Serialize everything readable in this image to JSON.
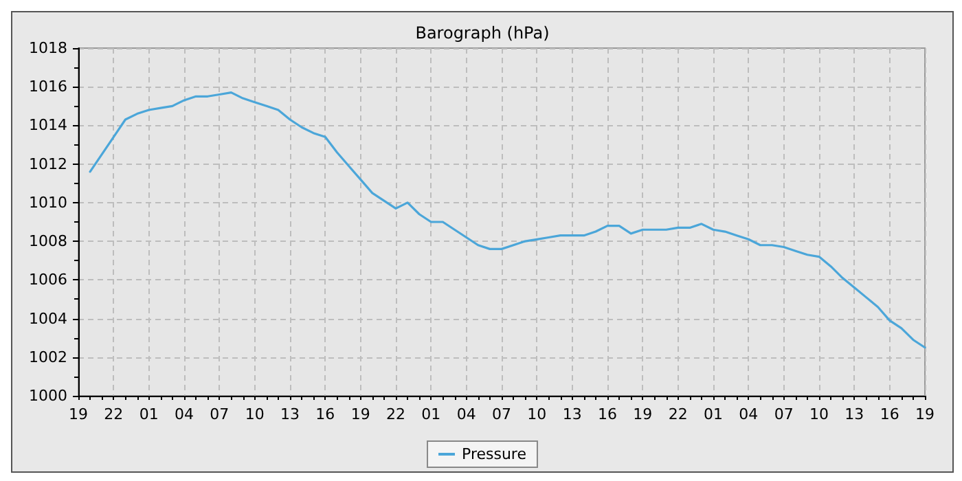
{
  "chart_data": {
    "type": "line",
    "title": "Barograph (hPa)",
    "categories": [
      "19",
      null,
      null,
      "22",
      null,
      null,
      "01",
      null,
      null,
      "04",
      null,
      null,
      "07",
      null,
      null,
      "10",
      null,
      null,
      "13",
      null,
      null,
      "16",
      null,
      null,
      "19",
      null,
      null,
      "22",
      null,
      null,
      "01",
      null,
      null,
      "04",
      null,
      null,
      "07",
      null,
      null,
      "10",
      null,
      null,
      "13",
      null,
      null,
      "16",
      null,
      null,
      "19",
      null,
      null,
      "22",
      null,
      null,
      "01",
      null,
      null,
      "04",
      null,
      null,
      "07",
      null,
      null,
      "10",
      null,
      null,
      "13",
      null,
      null,
      "16",
      null,
      null,
      "19"
    ],
    "series": [
      {
        "name": "Pressure",
        "color": "#4ba6d9",
        "values": [
          null,
          1011.6,
          1012.5,
          1013.4,
          1014.3,
          1014.6,
          1014.8,
          1014.9,
          1015.0,
          1015.3,
          1015.5,
          1015.5,
          1015.6,
          1015.7,
          1015.4,
          1015.2,
          1015.0,
          1014.8,
          1014.3,
          1013.9,
          1013.6,
          1013.4,
          1012.6,
          1011.9,
          1011.2,
          1010.5,
          1010.1,
          1009.7,
          1010.0,
          1009.4,
          1009.0,
          1009.0,
          1008.6,
          1008.2,
          1007.8,
          1007.6,
          1007.6,
          1007.8,
          1008.0,
          1008.1,
          1008.2,
          1008.3,
          1008.3,
          1008.3,
          1008.5,
          1008.8,
          1008.8,
          1008.4,
          1008.6,
          1008.6,
          1008.6,
          1008.7,
          1008.7,
          1008.9,
          1008.6,
          1008.5,
          1008.3,
          1008.1,
          1007.8,
          1007.8,
          1007.7,
          1007.5,
          1007.3,
          1007.2,
          1006.7,
          1006.1,
          1005.6,
          1005.1,
          1004.6,
          1003.9,
          1003.5,
          1002.9,
          1002.5
        ]
      }
    ],
    "ylim": [
      1000,
      1018
    ],
    "yticks": [
      1000,
      1002,
      1004,
      1006,
      1008,
      1010,
      1012,
      1014,
      1016,
      1018
    ],
    "grid": true,
    "legend": "bottom",
    "marker": "none",
    "line_style": "solid"
  }
}
